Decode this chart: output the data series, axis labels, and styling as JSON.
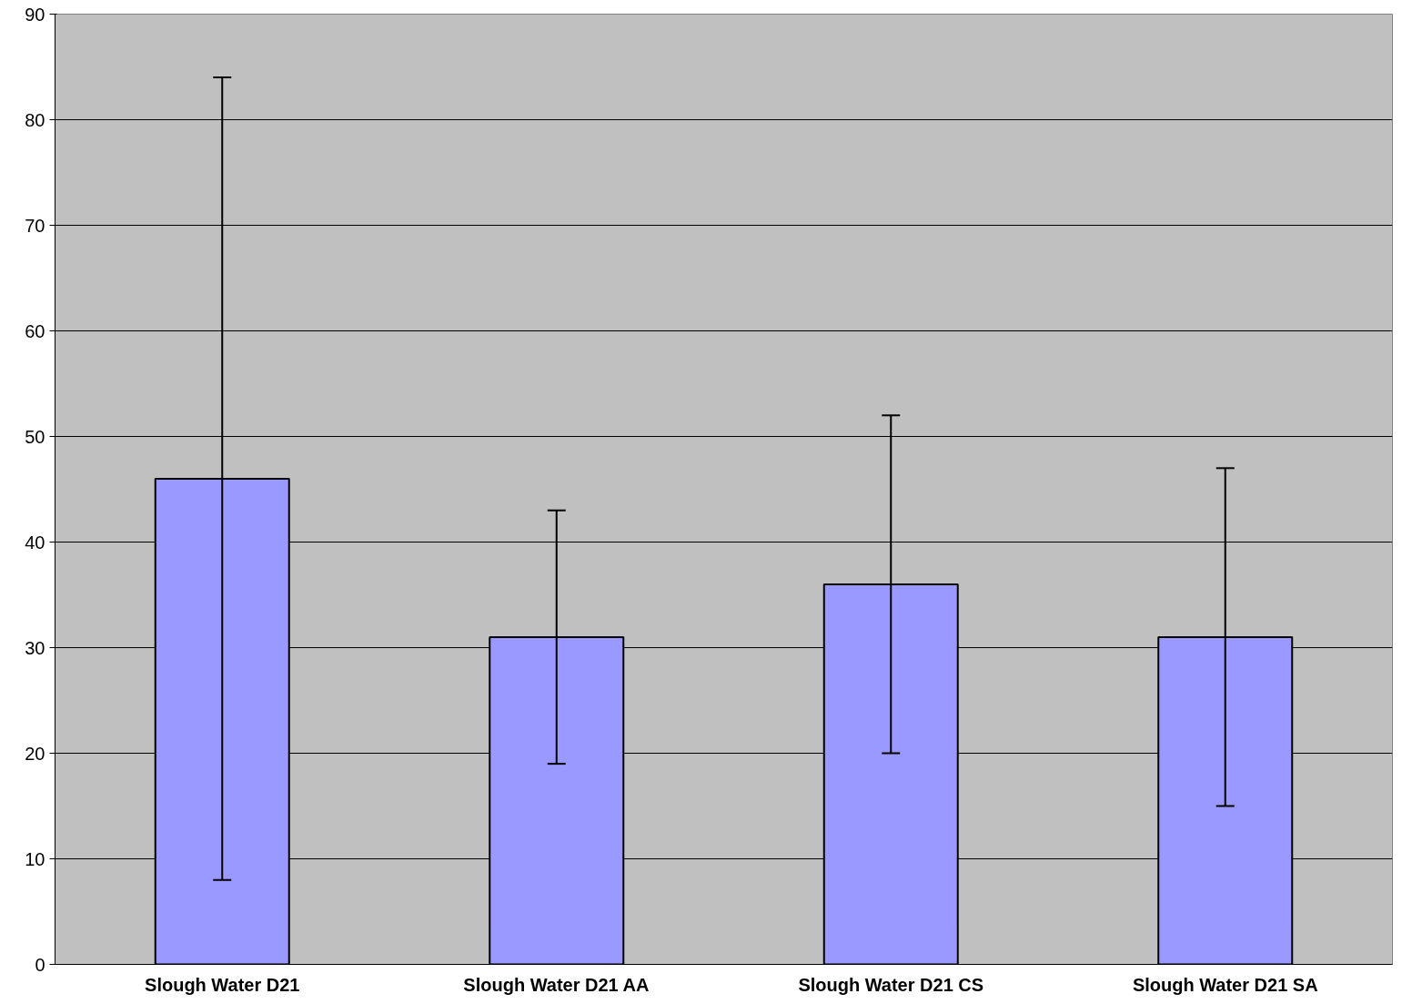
{
  "chart_data": {
    "type": "bar",
    "categories": [
      "Slough Water D21",
      "Slough Water D21 AA",
      "Slough Water D21 CS",
      "Slough Water D21 SA"
    ],
    "values": [
      46,
      31,
      36,
      31
    ],
    "color": "#9999ff",
    "errors": [
      [
        8,
        84
      ],
      [
        19,
        43
      ],
      [
        20,
        52
      ],
      [
        15,
        47
      ]
    ],
    "ylim": [
      0,
      90
    ],
    "yticks": [
      0,
      10,
      20,
      30,
      40,
      50,
      60,
      70,
      80,
      90
    ],
    "grid": "y"
  }
}
